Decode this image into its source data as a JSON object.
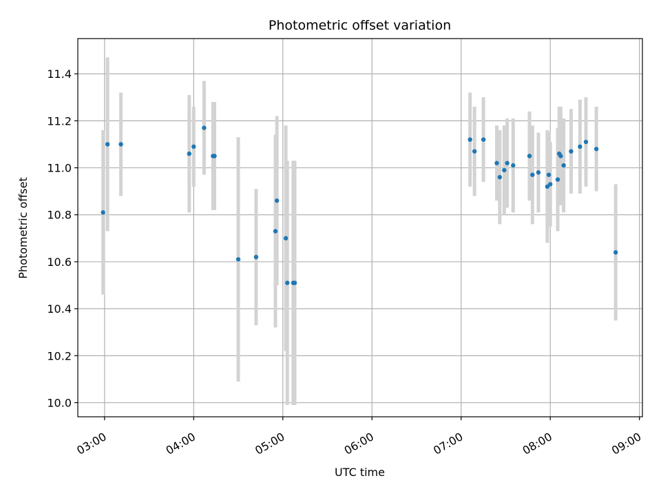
{
  "chart_data": {
    "type": "scatter",
    "title": "Photometric offset variation",
    "xlabel": "UTC time",
    "ylabel": "Photometric offset",
    "xlim": [
      "02:42",
      "09:02"
    ],
    "ylim": [
      9.94,
      11.55
    ],
    "x_ticks": [
      "03:00",
      "04:00",
      "05:00",
      "06:00",
      "07:00",
      "08:00",
      "09:00"
    ],
    "y_ticks": [
      "10.0",
      "10.2",
      "10.4",
      "10.6",
      "10.8",
      "11.0",
      "11.2",
      "11.4"
    ],
    "grid": true,
    "marker_color": "#1f77b4",
    "errorbar_color": "#d3d3d3",
    "points": [
      {
        "time": "02:59",
        "y": 10.81,
        "err": 0.35
      },
      {
        "time": "03:02",
        "y": 11.1,
        "err": 0.37
      },
      {
        "time": "03:11",
        "y": 11.1,
        "err": 0.22
      },
      {
        "time": "03:57",
        "y": 11.06,
        "err": 0.25
      },
      {
        "time": "04:00",
        "y": 11.09,
        "err": 0.17
      },
      {
        "time": "04:07",
        "y": 11.17,
        "err": 0.2
      },
      {
        "time": "04:13",
        "y": 11.05,
        "err": 0.23
      },
      {
        "time": "04:14",
        "y": 11.05,
        "err": 0.23
      },
      {
        "time": "04:30",
        "y": 10.61,
        "err": 0.52
      },
      {
        "time": "04:42",
        "y": 10.62,
        "err": 0.29
      },
      {
        "time": "04:55",
        "y": 10.73,
        "err": 0.41
      },
      {
        "time": "04:56",
        "y": 10.86,
        "err": 0.36
      },
      {
        "time": "05:02",
        "y": 10.7,
        "err": 0.48
      },
      {
        "time": "05:03",
        "y": 10.51,
        "err": 0.52
      },
      {
        "time": "05:07",
        "y": 10.51,
        "err": 0.52
      },
      {
        "time": "05:08",
        "y": 10.51,
        "err": 0.52
      },
      {
        "time": "07:06",
        "y": 11.12,
        "err": 0.2
      },
      {
        "time": "07:09",
        "y": 11.07,
        "err": 0.19
      },
      {
        "time": "07:15",
        "y": 11.12,
        "err": 0.18
      },
      {
        "time": "07:24",
        "y": 11.02,
        "err": 0.16
      },
      {
        "time": "07:26",
        "y": 10.96,
        "err": 0.2
      },
      {
        "time": "07:29",
        "y": 10.99,
        "err": 0.19
      },
      {
        "time": "07:31",
        "y": 11.02,
        "err": 0.19
      },
      {
        "time": "07:35",
        "y": 11.01,
        "err": 0.2
      },
      {
        "time": "07:46",
        "y": 11.05,
        "err": 0.19
      },
      {
        "time": "07:48",
        "y": 10.97,
        "err": 0.21
      },
      {
        "time": "07:52",
        "y": 10.98,
        "err": 0.17
      },
      {
        "time": "07:58",
        "y": 10.92,
        "err": 0.24
      },
      {
        "time": "07:59",
        "y": 10.97,
        "err": 0.18
      },
      {
        "time": "08:00",
        "y": 10.93,
        "err": 0.18
      },
      {
        "time": "08:05",
        "y": 10.95,
        "err": 0.22
      },
      {
        "time": "08:06",
        "y": 11.06,
        "err": 0.2
      },
      {
        "time": "08:07",
        "y": 11.05,
        "err": 0.21
      },
      {
        "time": "08:09",
        "y": 11.01,
        "err": 0.2
      },
      {
        "time": "08:14",
        "y": 11.07,
        "err": 0.18
      },
      {
        "time": "08:20",
        "y": 11.09,
        "err": 0.2
      },
      {
        "time": "08:24",
        "y": 11.11,
        "err": 0.19
      },
      {
        "time": "08:31",
        "y": 11.08,
        "err": 0.18
      },
      {
        "time": "08:44",
        "y": 10.64,
        "err": 0.29
      }
    ]
  }
}
